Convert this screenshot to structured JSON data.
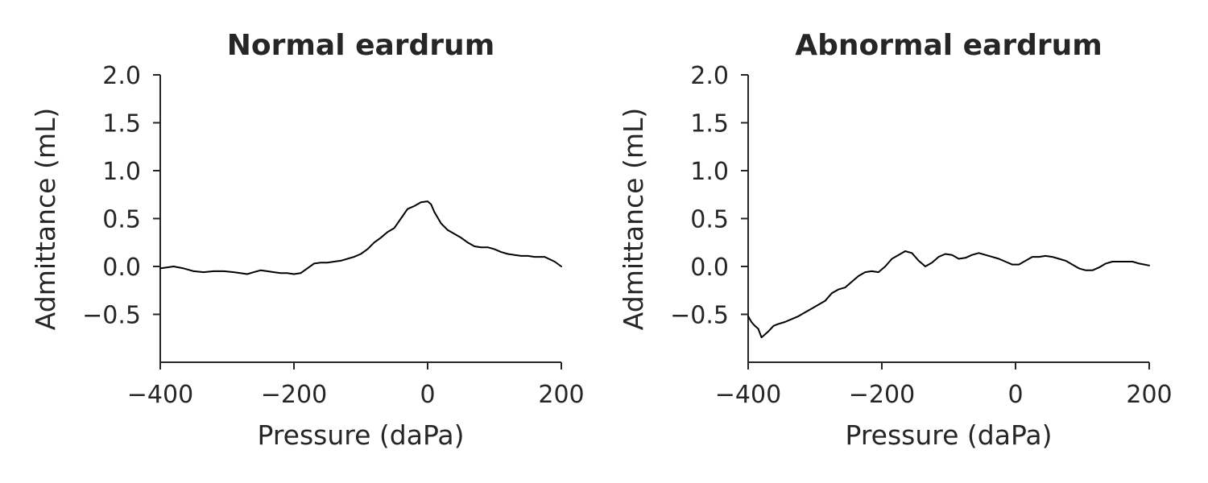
{
  "chart_data": [
    {
      "type": "line",
      "title": "Normal eardrum",
      "xlabel": "Pressure (daPa)",
      "ylabel": "Admittance (mL)",
      "xlim": [
        -400,
        200
      ],
      "ylim": [
        -1.0,
        2.0
      ],
      "xticks": [
        -400,
        -200,
        0,
        200
      ],
      "xtick_labels": [
        "−400",
        "−200",
        "0",
        "200"
      ],
      "yticks": [
        -0.5,
        0.0,
        0.5,
        1.0,
        1.5,
        2.0
      ],
      "ytick_labels": [
        "−0.5",
        "0.0",
        "0.5",
        "1.0",
        "1.5",
        "2.0"
      ],
      "grid": false,
      "series": [
        {
          "color": "#000000",
          "x": [
            -400,
            -380,
            -365,
            -350,
            -335,
            -320,
            -305,
            -290,
            -280,
            -270,
            -260,
            -250,
            -240,
            -230,
            -220,
            -210,
            -200,
            -190,
            -180,
            -170,
            -160,
            -150,
            -140,
            -130,
            -120,
            -110,
            -100,
            -90,
            -80,
            -70,
            -60,
            -50,
            -40,
            -30,
            -20,
            -10,
            0,
            5,
            10,
            20,
            30,
            40,
            50,
            60,
            70,
            80,
            90,
            100,
            110,
            120,
            130,
            140,
            150,
            160,
            175,
            190,
            200
          ],
          "y": [
            -0.02,
            0.0,
            -0.02,
            -0.05,
            -0.06,
            -0.05,
            -0.05,
            -0.06,
            -0.07,
            -0.08,
            -0.06,
            -0.04,
            -0.05,
            -0.06,
            -0.07,
            -0.07,
            -0.08,
            -0.07,
            -0.02,
            0.03,
            0.04,
            0.04,
            0.05,
            0.06,
            0.08,
            0.1,
            0.13,
            0.18,
            0.25,
            0.3,
            0.36,
            0.4,
            0.5,
            0.6,
            0.63,
            0.67,
            0.68,
            0.65,
            0.57,
            0.45,
            0.38,
            0.34,
            0.3,
            0.25,
            0.21,
            0.2,
            0.2,
            0.18,
            0.15,
            0.13,
            0.12,
            0.11,
            0.11,
            0.1,
            0.1,
            0.05,
            0.0
          ]
        }
      ]
    },
    {
      "type": "line",
      "title": "Abnormal eardrum",
      "xlabel": "Pressure (daPa)",
      "ylabel": "Admittance (mL)",
      "xlim": [
        -400,
        200
      ],
      "ylim": [
        -1.0,
        2.0
      ],
      "xticks": [
        -400,
        -200,
        0,
        200
      ],
      "xtick_labels": [
        "−400",
        "−200",
        "0",
        "200"
      ],
      "yticks": [
        -0.5,
        0.0,
        0.5,
        1.0,
        1.5,
        2.0
      ],
      "ytick_labels": [
        "−0.5",
        "0.0",
        "0.5",
        "1.0",
        "1.5",
        "2.0"
      ],
      "grid": false,
      "series": [
        {
          "color": "#000000",
          "x": [
            -400,
            -395,
            -390,
            -385,
            -380,
            -375,
            -370,
            -362,
            -355,
            -345,
            -335,
            -325,
            -315,
            -305,
            -295,
            -285,
            -275,
            -265,
            -255,
            -245,
            -235,
            -225,
            -215,
            -205,
            -195,
            -185,
            -175,
            -165,
            -155,
            -145,
            -135,
            -125,
            -115,
            -105,
            -95,
            -85,
            -75,
            -65,
            -55,
            -45,
            -35,
            -25,
            -15,
            -5,
            5,
            15,
            25,
            35,
            45,
            55,
            65,
            75,
            85,
            95,
            105,
            115,
            125,
            135,
            145,
            155,
            165,
            175,
            185,
            200
          ],
          "y": [
            -0.52,
            -0.58,
            -0.62,
            -0.65,
            -0.74,
            -0.71,
            -0.68,
            -0.62,
            -0.6,
            -0.58,
            -0.55,
            -0.52,
            -0.48,
            -0.44,
            -0.4,
            -0.36,
            -0.28,
            -0.24,
            -0.22,
            -0.16,
            -0.1,
            -0.06,
            -0.05,
            -0.06,
            0.0,
            0.08,
            0.12,
            0.16,
            0.14,
            0.06,
            0.0,
            0.04,
            0.1,
            0.13,
            0.12,
            0.08,
            0.09,
            0.12,
            0.14,
            0.12,
            0.1,
            0.08,
            0.05,
            0.02,
            0.02,
            0.06,
            0.1,
            0.1,
            0.11,
            0.1,
            0.08,
            0.06,
            0.02,
            -0.02,
            -0.04,
            -0.04,
            -0.01,
            0.03,
            0.05,
            0.05,
            0.05,
            0.05,
            0.03,
            0.01
          ]
        }
      ]
    }
  ]
}
